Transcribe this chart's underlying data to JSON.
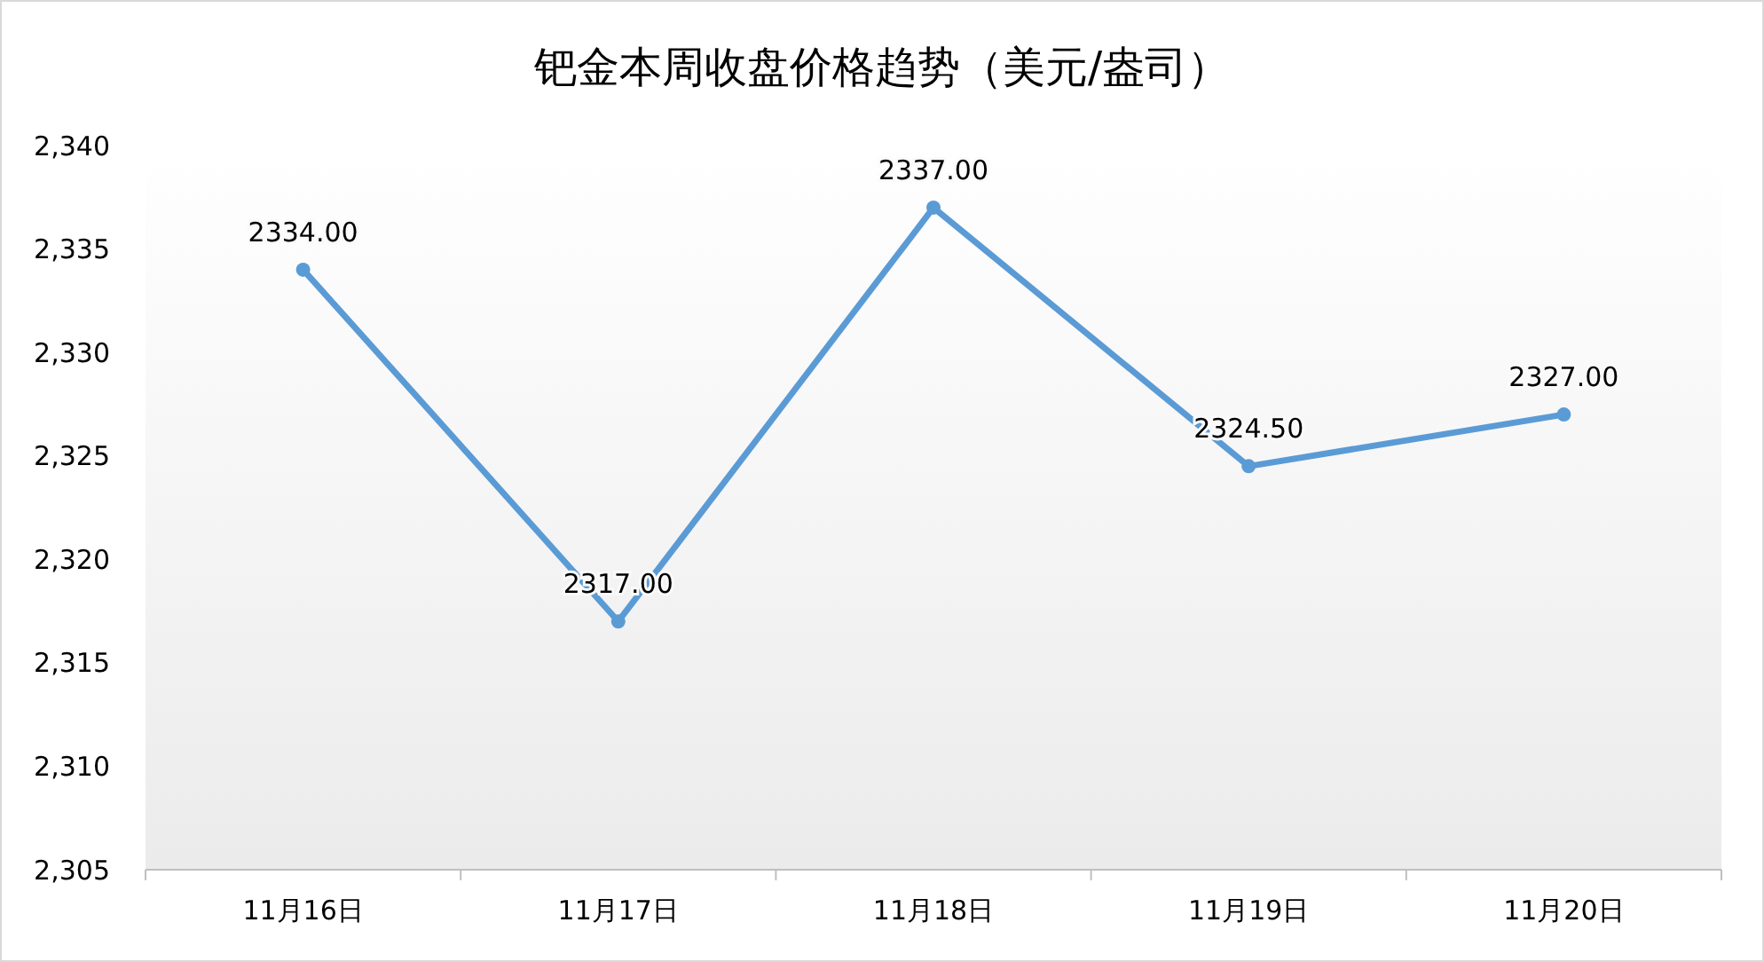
{
  "chart_data": {
    "type": "line",
    "title": "钯金本周收盘价格趋势（美元/盎司）",
    "categories": [
      "11月16日",
      "11月17日",
      "11月18日",
      "11月19日",
      "11月20日"
    ],
    "series": [
      {
        "color": "#5b9bd5",
        "values": [
          2334,
          2317,
          2337,
          2324.5,
          2327
        ],
        "value_labels": [
          "2334.00",
          "2317.00",
          "2337.00",
          "2324.50",
          "2327.00"
        ]
      }
    ],
    "ylim": [
      2305,
      2340
    ],
    "yticks": [
      {
        "value": 2305,
        "label": "2,305"
      },
      {
        "value": 2310,
        "label": "2,310"
      },
      {
        "value": 2315,
        "label": "2,315"
      },
      {
        "value": 2320,
        "label": "2,320"
      },
      {
        "value": 2325,
        "label": "2,325"
      },
      {
        "value": 2330,
        "label": "2,330"
      },
      {
        "value": 2335,
        "label": "2,335"
      },
      {
        "value": 2340,
        "label": "2,340"
      }
    ],
    "grid": false,
    "marker": "circle",
    "line_style": "solid"
  }
}
